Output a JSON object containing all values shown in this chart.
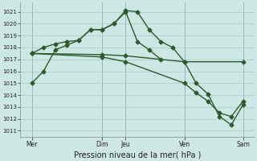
{
  "background_color": "#cde8e4",
  "grid_color": "#a8c8c4",
  "line_color": "#2d5a2d",
  "marker": "D",
  "markersize": 2.5,
  "linewidth": 1.0,
  "xlabel": "Pression niveau de la mer( hPa )",
  "ylim": [
    1010.5,
    1021.8
  ],
  "xlim": [
    0,
    20
  ],
  "yticks": [
    1011,
    1012,
    1013,
    1014,
    1015,
    1016,
    1017,
    1018,
    1019,
    1020,
    1021
  ],
  "xtick_positions": [
    1,
    7,
    9,
    14,
    19
  ],
  "xtick_labels": [
    "Mer",
    "Dim",
    "Jeu",
    "Ven",
    "Sam"
  ],
  "vlines_x": [
    1,
    7,
    9,
    14,
    19
  ],
  "vline_color": "#7799aa",
  "series": [
    {
      "x": [
        1,
        2,
        3,
        4,
        5,
        6,
        7,
        8,
        9,
        10,
        11,
        12,
        13,
        14,
        15,
        16,
        17,
        18,
        19
      ],
      "y": [
        1015.0,
        1016.0,
        1017.8,
        1018.2,
        1018.6,
        1019.5,
        1019.5,
        1020.0,
        1021.1,
        1021.0,
        1019.5,
        1018.5,
        1018.0,
        1016.8,
        1015.0,
        1014.1,
        1012.2,
        1011.5,
        1013.2
      ]
    },
    {
      "x": [
        1,
        2,
        3,
        4,
        5,
        6,
        7,
        8,
        9,
        10,
        11,
        12
      ],
      "y": [
        1017.5,
        1018.0,
        1018.3,
        1018.5,
        1018.6,
        1019.5,
        1019.5,
        1020.0,
        1021.0,
        1018.5,
        1017.8,
        1017.0
      ]
    },
    {
      "x": [
        1,
        7,
        9,
        14,
        19
      ],
      "y": [
        1017.5,
        1017.4,
        1017.3,
        1016.8,
        1016.8
      ]
    },
    {
      "x": [
        1,
        7,
        9,
        14,
        15,
        16,
        17,
        18,
        19
      ],
      "y": [
        1017.5,
        1017.2,
        1016.8,
        1015.0,
        1014.2,
        1013.5,
        1012.5,
        1012.2,
        1013.5
      ]
    }
  ]
}
